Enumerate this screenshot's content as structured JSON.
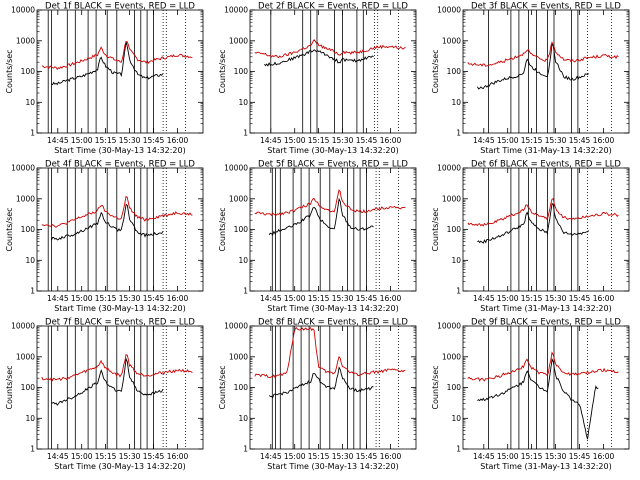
{
  "figure": {
    "background": "#ffffff",
    "events_color": "#000000",
    "lld_color": "#cc0000",
    "y_axis_label": "Counts/sec",
    "x_ticks": [
      "14:45",
      "15:00",
      "15:15",
      "15:30",
      "15:45",
      "16:00"
    ],
    "y_ticks": [
      "1",
      "10",
      "100",
      "1000",
      "10000"
    ]
  },
  "chart_data": [
    {
      "type": "line",
      "title": "Det 1f BLACK = Events, RED = LLD",
      "xlabel": "Start Time (30-May-13 14:32:20)",
      "ylabel": "Counts/sec",
      "y_scale": "log",
      "ylim": [
        1,
        10000
      ],
      "xlim": [
        "14:32",
        "16:16"
      ],
      "x": [
        "14:35",
        "14:40",
        "14:45",
        "14:50",
        "14:55",
        "15:00",
        "15:05",
        "15:10",
        "15:12",
        "15:15",
        "15:20",
        "15:25",
        "15:28",
        "15:30",
        "15:35",
        "15:40",
        "15:45",
        "15:50",
        "15:55",
        "16:00",
        "16:05",
        "16:10"
      ],
      "series": [
        {
          "name": "Events",
          "color": "#000000",
          "x_start": "14:41",
          "x_end": "15:51",
          "values": [
            null,
            null,
            40,
            50,
            60,
            70,
            90,
            120,
            300,
            150,
            90,
            80,
            1000,
            250,
            80,
            60,
            70,
            80,
            null,
            null,
            null,
            null
          ]
        },
        {
          "name": "LLD",
          "color": "#cc0000",
          "x_start": "14:35",
          "x_end": "16:10",
          "values": [
            150,
            140,
            130,
            150,
            180,
            220,
            280,
            350,
            600,
            350,
            250,
            200,
            1200,
            500,
            250,
            200,
            230,
            270,
            300,
            350,
            320,
            300
          ]
        }
      ],
      "vertical_lines_solid": [
        "14:39",
        "14:41",
        "14:51",
        "14:56",
        "15:04",
        "15:09",
        "15:16",
        "15:22",
        "15:33",
        "15:37",
        "15:41",
        "15:45"
      ],
      "vertical_lines_dotted": [
        "15:51",
        "15:53",
        "16:05"
      ]
    },
    {
      "type": "line",
      "title": "Det 2f BLACK = Events, RED = LLD",
      "xlabel": "Start Time (30-May-13 14:32:20)",
      "ylabel": "Counts/sec",
      "y_scale": "log",
      "ylim": [
        1,
        10000
      ],
      "xlim": [
        "14:32",
        "16:16"
      ],
      "x": [
        "14:35",
        "14:40",
        "14:45",
        "14:50",
        "14:55",
        "15:00",
        "15:05",
        "15:10",
        "15:12",
        "15:15",
        "15:20",
        "15:25",
        "15:28",
        "15:30",
        "15:35",
        "15:40",
        "15:45",
        "15:50",
        "15:55",
        "16:00",
        "16:05",
        "16:10"
      ],
      "series": [
        {
          "name": "Events",
          "color": "#000000",
          "x_start": "14:41",
          "x_end": "15:50",
          "values": [
            null,
            null,
            170,
            190,
            230,
            280,
            350,
            450,
            500,
            450,
            350,
            250,
            200,
            250,
            220,
            230,
            280,
            330,
            null,
            null,
            null,
            null
          ]
        },
        {
          "name": "LLD",
          "color": "#cc0000",
          "x_start": "14:35",
          "x_end": "16:10",
          "values": [
            400,
            380,
            320,
            300,
            350,
            420,
            550,
            700,
            1000,
            750,
            550,
            450,
            350,
            450,
            400,
            430,
            500,
            600,
            650,
            650,
            600,
            550
          ]
        }
      ],
      "vertical_lines_solid": [
        "14:45",
        "15:05",
        "15:10",
        "15:14",
        "15:25",
        "15:30",
        "15:39",
        "15:43"
      ],
      "vertical_lines_dotted": [
        "15:50",
        "15:52",
        "16:05"
      ]
    },
    {
      "type": "line",
      "title": "Det 3f BLACK = Events, RED = LLD",
      "xlabel": "Start Time (31-May-13 14:32:20)",
      "ylabel": "Counts/sec",
      "y_scale": "log",
      "ylim": [
        1,
        10000
      ],
      "xlim": [
        "14:32",
        "16:16"
      ],
      "x": [
        "14:35",
        "14:40",
        "14:45",
        "14:50",
        "14:55",
        "15:00",
        "15:05",
        "15:10",
        "15:12",
        "15:15",
        "15:20",
        "15:25",
        "15:28",
        "15:30",
        "15:35",
        "15:40",
        "15:45",
        "15:50",
        "15:55",
        "16:00",
        "16:05",
        "16:10"
      ],
      "series": [
        {
          "name": "Events",
          "color": "#000000",
          "x_start": "14:41",
          "x_end": "15:51",
          "values": [
            null,
            null,
            30,
            40,
            50,
            60,
            70,
            90,
            250,
            140,
            90,
            70,
            900,
            220,
            70,
            55,
            65,
            80,
            null,
            null,
            null,
            null
          ]
        },
        {
          "name": "LLD",
          "color": "#cc0000",
          "x_start": "14:35",
          "x_end": "16:10",
          "values": [
            180,
            170,
            160,
            170,
            200,
            240,
            300,
            380,
            550,
            350,
            260,
            220,
            1000,
            450,
            250,
            220,
            240,
            280,
            300,
            330,
            310,
            290
          ]
        }
      ],
      "vertical_lines_solid": [
        "14:48",
        "15:02",
        "15:07",
        "15:13",
        "15:18",
        "15:25",
        "15:29",
        "15:40",
        "15:44"
      ],
      "vertical_lines_dotted": [
        "15:50",
        "16:05"
      ]
    },
    {
      "type": "line",
      "title": "Det 4f BLACK = Events, RED = LLD",
      "xlabel": "Start Time (30-May-13 14:32:20)",
      "ylabel": "Counts/sec",
      "y_scale": "log",
      "ylim": [
        1,
        10000
      ],
      "xlim": [
        "14:32",
        "16:16"
      ],
      "x": [
        "14:35",
        "14:40",
        "14:45",
        "14:50",
        "14:55",
        "15:00",
        "15:05",
        "15:10",
        "15:12",
        "15:15",
        "15:20",
        "15:25",
        "15:28",
        "15:30",
        "15:35",
        "15:40",
        "15:45",
        "15:50",
        "15:55",
        "16:00",
        "16:05",
        "16:10"
      ],
      "series": [
        {
          "name": "Events",
          "color": "#000000",
          "x_start": "14:41",
          "x_end": "15:51",
          "values": [
            null,
            null,
            50,
            60,
            70,
            90,
            120,
            160,
            350,
            180,
            110,
            90,
            800,
            220,
            80,
            65,
            70,
            80,
            null,
            null,
            null,
            null
          ]
        },
        {
          "name": "LLD",
          "color": "#cc0000",
          "x_start": "14:35",
          "x_end": "16:10",
          "values": [
            150,
            140,
            130,
            160,
            200,
            260,
            320,
            400,
            650,
            380,
            260,
            220,
            1300,
            500,
            250,
            210,
            240,
            280,
            310,
            360,
            330,
            300
          ]
        }
      ],
      "vertical_lines_solid": [
        "14:39",
        "14:41",
        "14:51",
        "14:56",
        "15:04",
        "15:09",
        "15:16",
        "15:22",
        "15:33",
        "15:37",
        "15:41",
        "15:45"
      ],
      "vertical_lines_dotted": [
        "15:51",
        "15:53",
        "16:05"
      ]
    },
    {
      "type": "line",
      "title": "Det 5f BLACK = Events, RED = LLD",
      "xlabel": "Start Time (30-May-13 14:32:20)",
      "ylabel": "Counts/sec",
      "y_scale": "log",
      "ylim": [
        1,
        10000
      ],
      "xlim": [
        "14:32",
        "16:16"
      ],
      "x": [
        "14:35",
        "14:40",
        "14:45",
        "14:50",
        "14:55",
        "15:00",
        "15:05",
        "15:10",
        "15:12",
        "15:15",
        "15:20",
        "15:25",
        "15:28",
        "15:30",
        "15:35",
        "15:40",
        "15:45",
        "15:50",
        "15:55",
        "16:00",
        "16:05",
        "16:10"
      ],
      "series": [
        {
          "name": "Events",
          "color": "#000000",
          "x_start": "14:44",
          "x_end": "15:50",
          "values": [
            null,
            null,
            70,
            90,
            110,
            140,
            200,
            300,
            600,
            250,
            130,
            100,
            1100,
            300,
            120,
            100,
            110,
            130,
            null,
            null,
            null,
            null
          ]
        },
        {
          "name": "LLD",
          "color": "#cc0000",
          "x_start": "14:35",
          "x_end": "16:10",
          "values": [
            350,
            330,
            300,
            320,
            360,
            420,
            550,
            700,
            1100,
            650,
            450,
            380,
            2000,
            800,
            450,
            380,
            400,
            450,
            500,
            550,
            520,
            480
          ]
        }
      ],
      "vertical_lines_solid": [
        "14:46",
        "14:48",
        "14:51",
        "14:59",
        "15:04",
        "15:09",
        "15:16",
        "15:22",
        "15:33",
        "15:37",
        "15:41",
        "15:45"
      ],
      "vertical_lines_dotted": [
        "15:51",
        "15:53",
        "16:05"
      ]
    },
    {
      "type": "line",
      "title": "Det 6f BLACK = Events, RED = LLD",
      "xlabel": "Start Time (31-May-13 14:32:20)",
      "ylabel": "Counts/sec",
      "y_scale": "log",
      "ylim": [
        1,
        10000
      ],
      "xlim": [
        "14:32",
        "16:16"
      ],
      "x": [
        "14:35",
        "14:40",
        "14:45",
        "14:50",
        "14:55",
        "15:00",
        "15:05",
        "15:10",
        "15:12",
        "15:15",
        "15:20",
        "15:25",
        "15:28",
        "15:30",
        "15:35",
        "15:40",
        "15:45",
        "15:50",
        "15:55",
        "16:00",
        "16:05",
        "16:10"
      ],
      "series": [
        {
          "name": "Events",
          "color": "#000000",
          "x_start": "14:41",
          "x_end": "15:51",
          "values": [
            null,
            null,
            40,
            50,
            60,
            80,
            110,
            150,
            350,
            160,
            100,
            80,
            900,
            220,
            80,
            70,
            75,
            85,
            null,
            null,
            null,
            null
          ]
        },
        {
          "name": "LLD",
          "color": "#cc0000",
          "x_start": "14:35",
          "x_end": "16:10",
          "values": [
            160,
            150,
            140,
            160,
            200,
            260,
            330,
            420,
            650,
            380,
            270,
            220,
            1200,
            480,
            250,
            220,
            240,
            270,
            300,
            330,
            310,
            290
          ]
        }
      ],
      "vertical_lines_solid": [
        "14:48",
        "15:02",
        "15:07",
        "15:13",
        "15:18",
        "15:25",
        "15:29",
        "15:40",
        "15:44"
      ],
      "vertical_lines_dotted": [
        "15:50",
        "16:05"
      ]
    },
    {
      "type": "line",
      "title": "Det 7f BLACK = Events, RED = LLD",
      "xlabel": "Start Time (30-May-13 14:32:20)",
      "ylabel": "Counts/sec",
      "y_scale": "log",
      "ylim": [
        1,
        10000
      ],
      "xlim": [
        "14:32",
        "16:16"
      ],
      "x": [
        "14:35",
        "14:40",
        "14:45",
        "14:50",
        "14:55",
        "15:00",
        "15:05",
        "15:10",
        "15:12",
        "15:15",
        "15:20",
        "15:25",
        "15:28",
        "15:30",
        "15:35",
        "15:40",
        "15:45",
        "15:50",
        "15:55",
        "16:00",
        "16:05",
        "16:10"
      ],
      "series": [
        {
          "name": "Events",
          "color": "#000000",
          "x_start": "14:41",
          "x_end": "15:51",
          "values": [
            null,
            null,
            30,
            40,
            50,
            70,
            100,
            150,
            350,
            150,
            90,
            70,
            1000,
            230,
            75,
            60,
            65,
            80,
            null,
            null,
            null,
            null
          ]
        },
        {
          "name": "LLD",
          "color": "#cc0000",
          "x_start": "14:35",
          "x_end": "16:10",
          "values": [
            200,
            190,
            180,
            200,
            240,
            300,
            380,
            480,
            750,
            420,
            290,
            240,
            1400,
            550,
            280,
            250,
            270,
            300,
            330,
            370,
            350,
            320
          ]
        }
      ],
      "vertical_lines_solid": [
        "14:39",
        "14:41",
        "14:51",
        "14:56",
        "15:04",
        "15:09",
        "15:16",
        "15:22",
        "15:33",
        "15:37",
        "15:41",
        "15:45"
      ],
      "vertical_lines_dotted": [
        "15:51",
        "15:53",
        "16:05"
      ]
    },
    {
      "type": "line",
      "title": "Det 8f BLACK = Events, RED = LLD",
      "xlabel": "Start Time (30-May-13 14:32:20)",
      "ylabel": "Counts/sec",
      "y_scale": "log",
      "ylim": [
        1,
        10000
      ],
      "xlim": [
        "14:32",
        "16:16"
      ],
      "x": [
        "14:35",
        "14:40",
        "14:45",
        "14:50",
        "14:55",
        "15:00",
        "15:05",
        "15:10",
        "15:12",
        "15:15",
        "15:20",
        "15:25",
        "15:28",
        "15:30",
        "15:35",
        "15:40",
        "15:45",
        "15:50",
        "15:55",
        "16:00",
        "16:05",
        "16:10"
      ],
      "series": [
        {
          "name": "Events",
          "color": "#000000",
          "x_start": "14:44",
          "x_end": "15:50",
          "values": [
            null,
            null,
            50,
            60,
            70,
            90,
            120,
            160,
            300,
            180,
            110,
            90,
            500,
            200,
            90,
            80,
            90,
            100,
            null,
            null,
            null,
            null
          ]
        },
        {
          "name": "LLD",
          "color": "#cc0000",
          "x_start": "14:35",
          "x_end": "16:10",
          "values": [
            250,
            240,
            230,
            250,
            280,
            8000,
            8000,
            8000,
            8000,
            450,
            320,
            280,
            1100,
            500,
            300,
            270,
            290,
            320,
            340,
            370,
            350,
            330
          ]
        }
      ],
      "vertical_lines_solid": [
        "14:46",
        "14:48",
        "14:51",
        "14:59",
        "15:04",
        "15:09",
        "15:16",
        "15:22",
        "15:33",
        "15:37",
        "15:41",
        "15:45"
      ],
      "vertical_lines_dotted": [
        "15:51",
        "15:53",
        "16:05"
      ]
    },
    {
      "type": "line",
      "title": "Det 9f BLACK = Events, RED = LLD",
      "xlabel": "Start Time (31-May-13 14:32:20)",
      "ylabel": "Counts/sec",
      "y_scale": "log",
      "ylim": [
        1,
        10000
      ],
      "xlim": [
        "14:32",
        "16:16"
      ],
      "x": [
        "14:35",
        "14:40",
        "14:45",
        "14:50",
        "14:55",
        "15:00",
        "15:05",
        "15:10",
        "15:12",
        "15:15",
        "15:20",
        "15:25",
        "15:28",
        "15:30",
        "15:35",
        "15:40",
        "15:45",
        "15:50",
        "15:55",
        "16:00",
        "16:05",
        "16:10"
      ],
      "series": [
        {
          "name": "Events",
          "color": "#000000",
          "x_start": "14:41",
          "x_end": "15:57",
          "values": [
            null,
            null,
            40,
            50,
            60,
            80,
            110,
            150,
            400,
            170,
            100,
            80,
            1000,
            250,
            80,
            40,
            30,
            2,
            100,
            null,
            null,
            null
          ]
        },
        {
          "name": "LLD",
          "color": "#cc0000",
          "x_start": "14:35",
          "x_end": "16:10",
          "values": [
            200,
            190,
            180,
            200,
            240,
            300,
            380,
            480,
            800,
            430,
            300,
            250,
            1500,
            600,
            300,
            260,
            280,
            310,
            340,
            370,
            350,
            320
          ]
        }
      ],
      "vertical_lines_solid": [
        "14:48",
        "15:02",
        "15:07",
        "15:13",
        "15:18",
        "15:25",
        "15:29",
        "15:40",
        "15:44"
      ],
      "vertical_lines_dotted": [
        "15:50",
        "16:05"
      ]
    }
  ]
}
